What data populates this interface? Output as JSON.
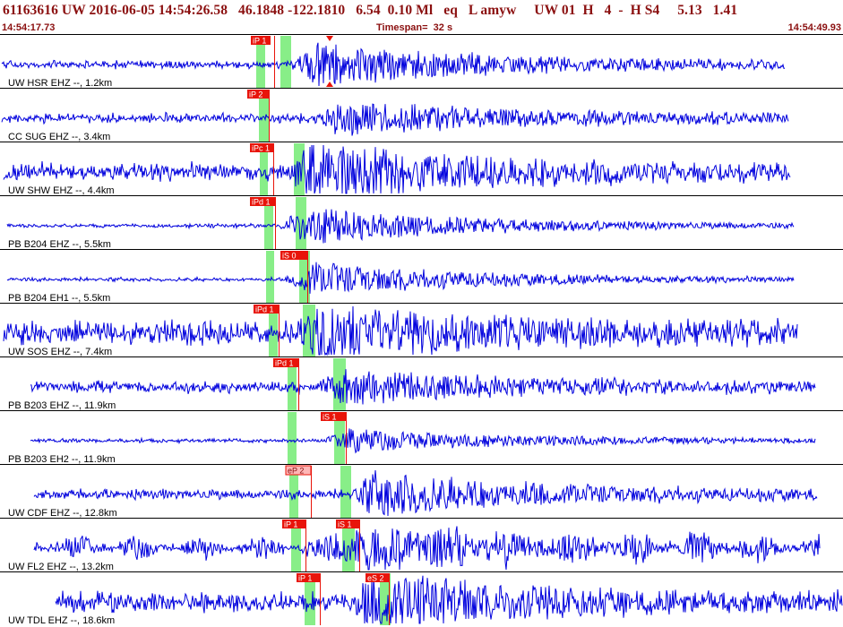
{
  "header": {
    "title": "61163616 UW 2016-06-05 14:54:26.58   46.1848 -122.1810   6.54  0.10 Ml   eq   L amyw     UW 01  H   4  -  H S4     5.13   1.41",
    "start_time": "14:54:17.73",
    "timespan": "Timespan=  32 s",
    "end_time": "14:54:49.93"
  },
  "colors": {
    "trace": "#0000dd",
    "pick_fill": "#e8140a",
    "pick_fill_light": "#ffb6b6",
    "window": "#88ee88",
    "divider": "#000000",
    "header_text": "#8b1010"
  },
  "traces": [
    {
      "label": "UW HSR EHZ --, 1.2km",
      "picks": [
        {
          "text": "iP 1",
          "style": "solid"
        },
        {
          "text": "",
          "style": "marker"
        }
      ],
      "seed": 11,
      "amp": 4,
      "burst": 22
    },
    {
      "label": "CC SUG EHZ --, 3.4km",
      "picks": [
        {
          "text": "iP 2",
          "style": "solid"
        }
      ],
      "seed": 23,
      "amp": 5,
      "burst": 16
    },
    {
      "label": "UW SHW EHZ --, 4.4km",
      "picks": [
        {
          "text": "iPc 1",
          "style": "solid"
        }
      ],
      "seed": 37,
      "amp": 9,
      "burst": 26
    },
    {
      "label": "PB B204 EHZ --, 5.5km",
      "picks": [
        {
          "text": "iPd 1",
          "style": "solid"
        }
      ],
      "seed": 41,
      "amp": 2,
      "burst": 20
    },
    {
      "label": "PB B204 EH1 --, 5.5km",
      "picks": [
        {
          "text": "iS 0",
          "style": "solid"
        }
      ],
      "seed": 53,
      "amp": 2,
      "burst": 18
    },
    {
      "label": "UW SOS EHZ --, 7.4km",
      "picks": [
        {
          "text": "iPd 1",
          "style": "solid"
        }
      ],
      "seed": 67,
      "amp": 12,
      "burst": 22
    },
    {
      "label": "PB B203 EHZ --, 11.9km",
      "picks": [
        {
          "text": "iPd 1",
          "style": "solid"
        }
      ],
      "seed": 71,
      "amp": 6,
      "burst": 15
    },
    {
      "label": "PB B203 EH2 --, 11.9km",
      "picks": [
        {
          "text": "iS 1",
          "style": "solid"
        }
      ],
      "seed": 83,
      "amp": 2,
      "burst": 12
    },
    {
      "label": "UW CDF EHZ --, 12.8km",
      "picks": [
        {
          "text": "eP 2",
          "style": "light"
        }
      ],
      "seed": 97,
      "amp": 5,
      "burst": 22
    },
    {
      "label": "UW FL2 EHZ --, 13.2km",
      "picks": [
        {
          "text": "iP 1",
          "style": "solid"
        },
        {
          "text": "iS 1",
          "style": "solid"
        }
      ],
      "seed": 101,
      "amp": 9,
      "burst": 18
    },
    {
      "label": "UW TDL EHZ --, 18.6km",
      "picks": [
        {
          "text": "iP 1",
          "style": "solid"
        },
        {
          "text": "eS 2",
          "style": "solid"
        }
      ],
      "seed": 113,
      "amp": 10,
      "burst": 26
    }
  ]
}
